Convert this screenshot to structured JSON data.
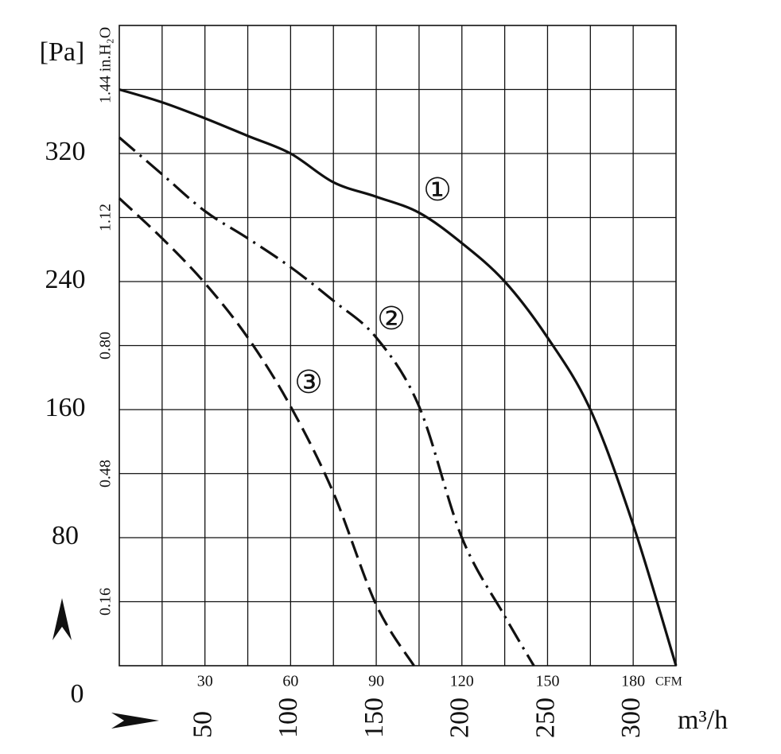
{
  "chart_data": {
    "type": "line",
    "y_label": "[Pa]",
    "y2_label": "in.H₂O",
    "x_label": "m³/h",
    "x2_label": "CFM",
    "origin_label": "0",
    "xlim": [
      0,
      325
    ],
    "xticks": [
      50,
      100,
      150,
      200,
      250,
      300
    ],
    "xminor": [
      25,
      75,
      125,
      175,
      225,
      275
    ],
    "x2lim": [
      0,
      195
    ],
    "x2ticks": [
      30,
      60,
      90,
      120,
      150,
      180
    ],
    "ylim": [
      0,
      400
    ],
    "yticks": [
      80,
      160,
      240,
      320
    ],
    "y2lim": [
      0,
      1.6
    ],
    "y2ticks": [
      0.16,
      0.48,
      {
        "value": 0.8,
        "label": "0.80"
      },
      1.12,
      1.44
    ],
    "grid": true,
    "series": [
      {
        "name": "①",
        "color": "#111111",
        "dash": "solid",
        "x": [
          0,
          25,
          50,
          75,
          100,
          125,
          150,
          175,
          200,
          225,
          250,
          275,
          300,
          325
        ],
        "values": [
          360,
          352,
          342,
          331,
          320,
          302,
          293,
          283,
          264,
          240,
          205,
          160,
          88,
          0
        ]
      },
      {
        "name": "②",
        "color": "#111111",
        "dash": "dashdot",
        "x": [
          0,
          25,
          50,
          75,
          100,
          125,
          150,
          175,
          200,
          225,
          242
        ],
        "values": [
          330,
          307,
          284,
          267,
          249,
          228,
          205,
          162,
          80,
          31,
          0
        ]
      },
      {
        "name": "③",
        "color": "#111111",
        "dash": "dash",
        "x": [
          0,
          25,
          50,
          75,
          100,
          125,
          150,
          172
        ],
        "values": [
          292,
          267,
          239,
          205,
          162,
          108,
          38,
          0
        ]
      }
    ]
  }
}
